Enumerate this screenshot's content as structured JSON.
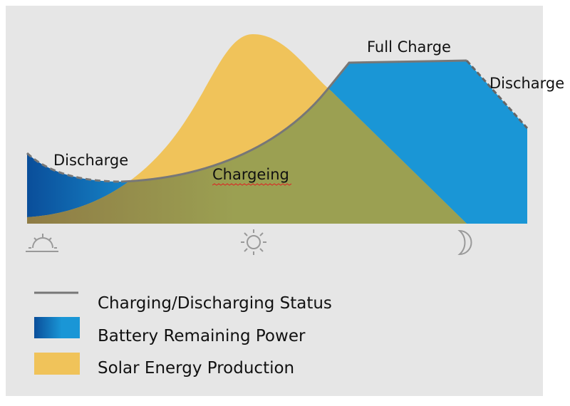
{
  "labels": {
    "discharge_morning": "Discharge",
    "charging": "Chargeing",
    "full_charge": "Full Charge",
    "discharge_evening": "Discharge"
  },
  "time_icons": [
    "sunrise-icon",
    "sun-icon",
    "moon-icon"
  ],
  "legend": [
    {
      "label": "Charging/Discharging Status",
      "symbol": "line",
      "color": "#777777"
    },
    {
      "label": "Battery Remaining Power",
      "symbol": "box",
      "color": "#1a96d6"
    },
    {
      "label": "Solar Energy Production",
      "symbol": "box",
      "color": "#f0c35a"
    }
  ],
  "colors": {
    "battery": "#1a96d6",
    "battery_dark": "#0a4e9a",
    "solar": "#f0c35a",
    "overlap": "#9ba052",
    "status_line": "#777777",
    "background": "#e6e6e6"
  }
}
